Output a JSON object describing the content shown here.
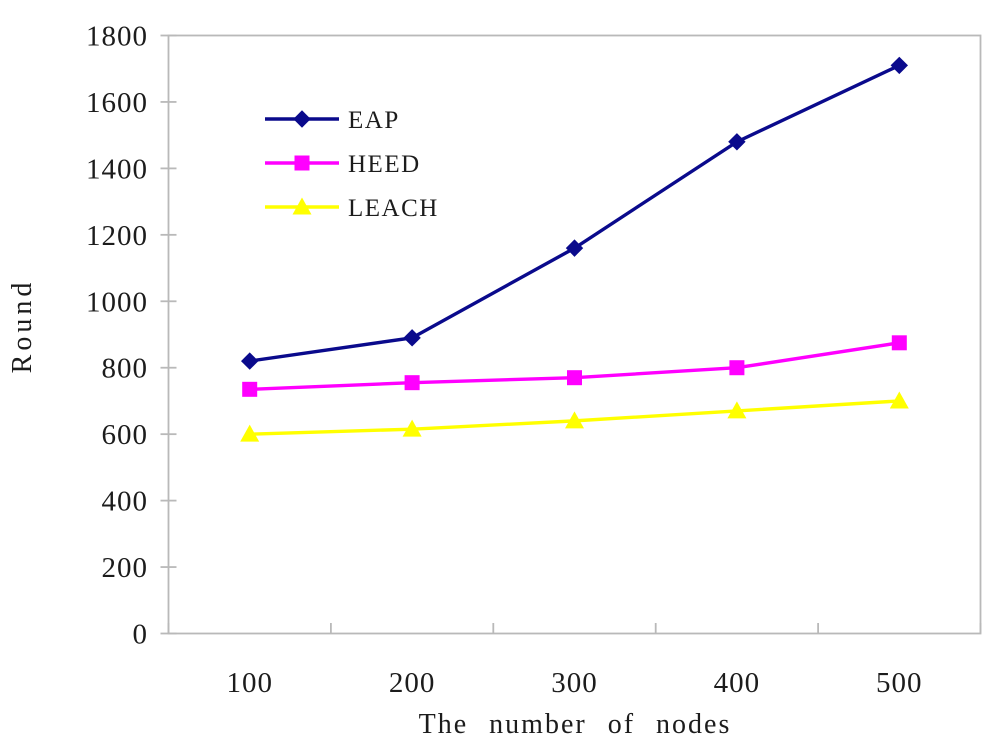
{
  "figure": {
    "background_color": "#ffffff",
    "axis_color": "#b9b9b9",
    "text_color": "#1c1c1c"
  },
  "chart_data": {
    "type": "line",
    "title": "",
    "xlabel": "The number of nodes",
    "ylabel": "Round",
    "x": [
      100,
      200,
      300,
      400,
      500
    ],
    "x_tick_labels": [
      "100",
      "200",
      "300",
      "400",
      "500"
    ],
    "ylim": [
      0,
      1800
    ],
    "ytick_step": 200,
    "y_ticks": [
      0,
      200,
      400,
      600,
      800,
      1000,
      1200,
      1400,
      1600,
      1800
    ],
    "grid": false,
    "legend_position": "upper-left-inside",
    "legend_entries": [
      "EAP",
      "HEED",
      "LEACH"
    ],
    "series": [
      {
        "name": "EAP",
        "color": "#0a0a8c",
        "marker": "diamond",
        "values": [
          820,
          890,
          1160,
          1480,
          1710
        ]
      },
      {
        "name": "HEED",
        "color": "#ff00ff",
        "marker": "square",
        "values": [
          735,
          755,
          770,
          800,
          875
        ]
      },
      {
        "name": "LEACH",
        "color": "#ffff00",
        "marker": "triangle",
        "values": [
          600,
          615,
          640,
          670,
          700
        ]
      }
    ]
  }
}
